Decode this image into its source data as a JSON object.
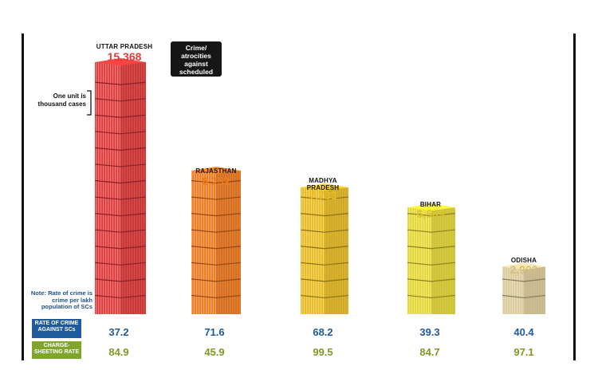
{
  "colors": {
    "uttar": "#e23a3a",
    "rajasthan": "#f07a1e",
    "madhya": "#e9bc22",
    "bihar": "#e6d834",
    "odisha": "#dccb9a",
    "rate_blue": "#1f5a9c",
    "rate_green": "#7fa52b"
  },
  "annotations": {
    "tag": "Crime/ atrocities against scheduled caste(s)",
    "unit_note": "One unit is thousand cases",
    "rate_note": "Note: Rate of crime is crime per lakh population of SCs",
    "rate_label": "RATE OF CRIME AGAINST SCs",
    "charge_label": "CHARGE-SHEETING RATE"
  },
  "chart_data": {
    "type": "bar",
    "categories": [
      "UTTAR PRADESH",
      "RAJASTHAN",
      "MADHYA PRADESH",
      "BIHAR",
      "ODISHA"
    ],
    "value_labels": [
      "15,368",
      "8,752",
      "7,733",
      "6,509",
      "2,902"
    ],
    "values": [
      15368,
      8752,
      7733,
      6509,
      2902
    ],
    "rate_of_crime": [
      "37.2",
      "71.6",
      "68.2",
      "39.3",
      "40.4"
    ],
    "charge_sheeting_rate": [
      "84.9",
      "45.9",
      "99.5",
      "84.7",
      "97.1"
    ],
    "unit": 1000,
    "title": "",
    "xlabel": "",
    "ylabel": ""
  }
}
